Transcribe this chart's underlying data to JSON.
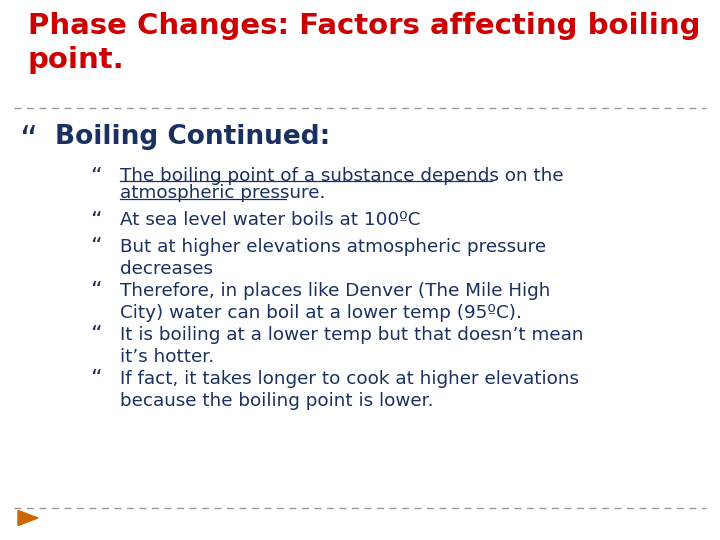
{
  "title_line1": "Phase Changes: Factors affecting boiling",
  "title_line2": "point.",
  "title_color": "#cc0000",
  "title_fontsize": 21,
  "bg_color": "#ffffff",
  "divider_color": "#999999",
  "bullet1_text": "Boiling Continued:",
  "bullet1_color": "#1a3060",
  "bullet1_fontsize": 19,
  "sub_bullets": [
    {
      "text_parts": [
        "The boiling point of a substance depends on the",
        "atmospheric pressure."
      ],
      "underline": true
    },
    {
      "text_parts": [
        "At sea level water boils at 100ºC"
      ],
      "underline": false
    },
    {
      "text_parts": [
        "But at higher elevations atmospheric pressure",
        "decreases"
      ],
      "underline": false
    },
    {
      "text_parts": [
        "Therefore, in places like Denver (The Mile High",
        "City) water can boil at a lower temp (95ºC)."
      ],
      "underline": false
    },
    {
      "text_parts": [
        "It is boiling at a lower temp but that doesn’t mean",
        "it’s hotter."
      ],
      "underline": false
    },
    {
      "text_parts": [
        "If fact, it takes longer to cook at higher elevations",
        "because the boiling point is lower."
      ],
      "underline": false
    }
  ],
  "sub_bullet_color": "#1a3060",
  "sub_bullet_fontsize": 13.2,
  "bottom_arrow_color": "#cc6600"
}
